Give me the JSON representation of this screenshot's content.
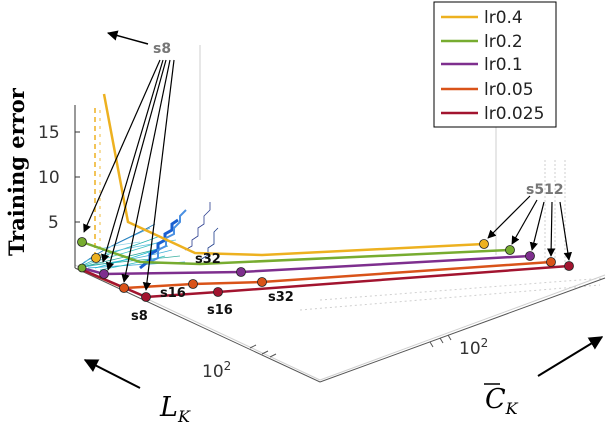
{
  "chart_data": {
    "type": "line",
    "title": "",
    "ylabel": "Training error",
    "xlabel_left": "L_K",
    "xlabel_right": "C̄_K",
    "y_ticks": [
      "5",
      "10",
      "15"
    ],
    "x_left_tick": "10^2",
    "x_right_tick": "10^2",
    "legend_placement": "top-right",
    "legend": [
      "lr0.4",
      "lr0.2",
      "lr0.1",
      "lr0.05",
      "lr0.025"
    ],
    "series": [
      {
        "name": "lr0.4",
        "color": "#EDB120"
      },
      {
        "name": "lr0.2",
        "color": "#77AC30"
      },
      {
        "name": "lr0.1",
        "color": "#7E2F8E"
      },
      {
        "name": "lr0.05",
        "color": "#D95319"
      },
      {
        "name": "lr0.025",
        "color": "#A2142F"
      }
    ],
    "annotations": {
      "s8_top": "s8",
      "s512": "s512",
      "s32_mid": "s32",
      "s16_a": "s16",
      "s32_b": "s32",
      "s8_b": "s8",
      "s16_b": "s16"
    }
  }
}
